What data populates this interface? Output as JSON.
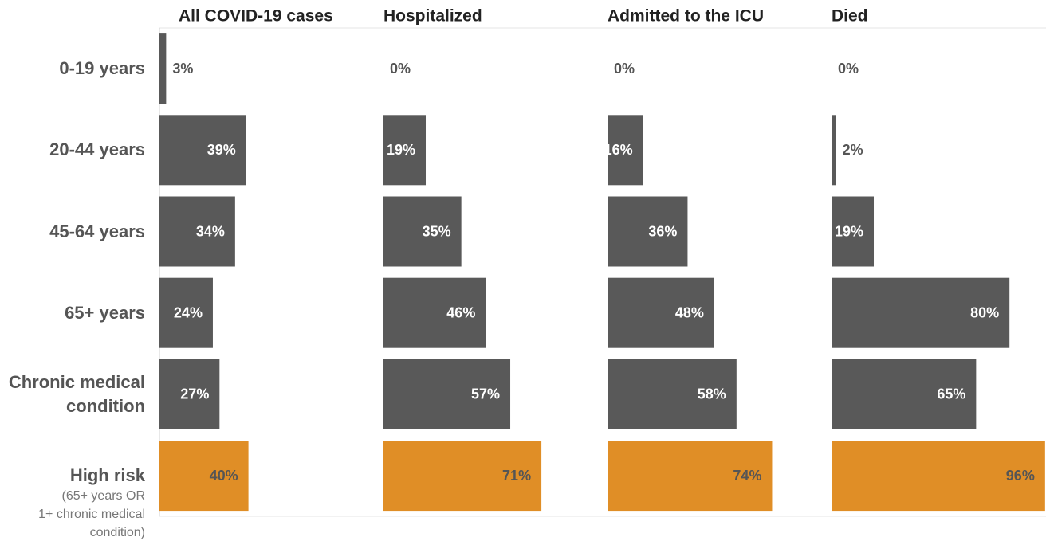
{
  "chart_data": {
    "type": "bar",
    "orientation": "horizontal",
    "categories": [
      "0-19 years",
      "20-44 years",
      "45-64 years",
      "65+ years",
      "Chronic medical condition",
      "High risk"
    ],
    "high_risk_note": [
      "(65+ years OR",
      "1+ chronic medical",
      "condition)"
    ],
    "colors": [
      "#595959",
      "#595959",
      "#595959",
      "#595959",
      "#595959",
      "#e08e26"
    ],
    "label_colors": [
      "#ffffff",
      "#ffffff",
      "#ffffff",
      "#ffffff",
      "#ffffff",
      "#555555"
    ],
    "xlim": [
      0,
      100
    ],
    "series": [
      {
        "name": "All COVID-19 cases",
        "values": [
          3,
          39,
          34,
          24,
          27,
          40
        ],
        "value_labels": [
          "3%",
          "39%",
          "34%",
          "24%",
          "27%",
          "40%"
        ]
      },
      {
        "name": "Hospitalized",
        "values": [
          0,
          19,
          35,
          46,
          57,
          71
        ],
        "value_labels": [
          "0%",
          "19%",
          "35%",
          "46%",
          "57%",
          "71%"
        ]
      },
      {
        "name": "Admitted to the ICU",
        "values": [
          0,
          16,
          36,
          48,
          58,
          74
        ],
        "value_labels": [
          "0%",
          "16%",
          "36%",
          "48%",
          "58%",
          "74%"
        ]
      },
      {
        "name": "Died",
        "values": [
          0,
          2,
          19,
          80,
          65,
          96
        ],
        "value_labels": [
          "0%",
          "2%",
          "19%",
          "80%",
          "65%",
          "96%"
        ]
      }
    ]
  }
}
